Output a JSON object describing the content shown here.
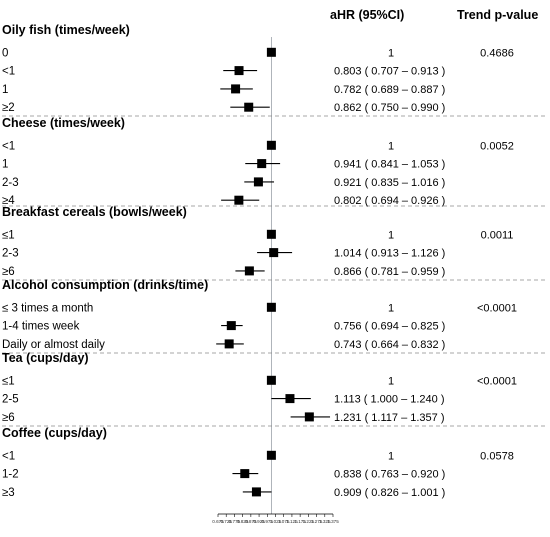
{
  "header": {
    "ahr_label": "aHR (95%CI)",
    "trend_label": "Trend p-value"
  },
  "chart_data": {
    "type": "forest",
    "title": "",
    "xlabel": "",
    "ylabel": "",
    "xlim": [
      0.675,
      1.375
    ],
    "reference_line": 1,
    "x_ticks": [
      "0.675",
      "0.725",
      "0.775",
      "0.825",
      "0.875",
      "0.925",
      "0.975",
      "1.025",
      "1.075",
      "1.125",
      "1.175",
      "1.225",
      "1.275",
      "1.325",
      "1.375"
    ],
    "groups": [
      {
        "name": "Oily fish (times/week)",
        "trend_p": "0.4686",
        "rows": [
          {
            "label": "0",
            "hr": 1,
            "lo": 1,
            "hi": 1,
            "text": "1"
          },
          {
            "label": "<1",
            "hr": 0.803,
            "lo": 0.707,
            "hi": 0.913,
            "text": "0.803  ( 0.707 – 0.913 )"
          },
          {
            "label": "1",
            "hr": 0.782,
            "lo": 0.689,
            "hi": 0.887,
            "text": "0.782  ( 0.689 – 0.887 )"
          },
          {
            "label": "≥2",
            "hr": 0.862,
            "lo": 0.75,
            "hi": 0.99,
            "text": "0.862  ( 0.750 – 0.990 )"
          }
        ]
      },
      {
        "name": "Cheese (times/week)",
        "trend_p": "0.0052",
        "rows": [
          {
            "label": "<1",
            "hr": 1,
            "lo": 1,
            "hi": 1,
            "text": "1"
          },
          {
            "label": "1",
            "hr": 0.941,
            "lo": 0.841,
            "hi": 1.053,
            "text": "0.941  ( 0.841 – 1.053 )"
          },
          {
            "label": "2-3",
            "hr": 0.921,
            "lo": 0.835,
            "hi": 1.016,
            "text": "0.921  ( 0.835 – 1.016 )"
          },
          {
            "label": "≥4",
            "hr": 0.802,
            "lo": 0.694,
            "hi": 0.926,
            "text": "0.802  ( 0.694 – 0.926 )"
          }
        ]
      },
      {
        "name": "Breakfast cereals (bowls/week)",
        "trend_p": "0.0011",
        "rows": [
          {
            "label": "≤1",
            "hr": 1,
            "lo": 1,
            "hi": 1,
            "text": "1"
          },
          {
            "label": "2-3",
            "hr": 1.014,
            "lo": 0.913,
            "hi": 1.126,
            "text": "1.014  ( 0.913 – 1.126 )"
          },
          {
            "label": "≥6",
            "hr": 0.866,
            "lo": 0.781,
            "hi": 0.959,
            "text": "0.866  ( 0.781 – 0.959 )"
          }
        ]
      },
      {
        "name": "Alcohol consumption (drinks/time)",
        "trend_p": "<0.0001",
        "rows": [
          {
            "label": "≤ 3 times a month",
            "hr": 1,
            "lo": 1,
            "hi": 1,
            "text": "1"
          },
          {
            "label": "1-4 times week",
            "hr": 0.756,
            "lo": 0.694,
            "hi": 0.825,
            "text": "0.756  ( 0.694 – 0.825 )"
          },
          {
            "label": "Daily or almost daily",
            "hr": 0.743,
            "lo": 0.664,
            "hi": 0.832,
            "text": "0.743  ( 0.664 – 0.832 )"
          }
        ]
      },
      {
        "name": "Tea (cups/day)",
        "trend_p": "<0.0001",
        "rows": [
          {
            "label": "≤1",
            "hr": 1,
            "lo": 1,
            "hi": 1,
            "text": "1"
          },
          {
            "label": "2-5",
            "hr": 1.113,
            "lo": 1.0,
            "hi": 1.24,
            "text": "1.113  ( 1.000 – 1.240 )"
          },
          {
            "label": "≥6",
            "hr": 1.231,
            "lo": 1.117,
            "hi": 1.357,
            "text": "1.231  ( 1.117 – 1.357 )"
          }
        ]
      },
      {
        "name": "Coffee (cups/day)",
        "trend_p": "0.0578",
        "rows": [
          {
            "label": "<1",
            "hr": 1,
            "lo": 1,
            "hi": 1,
            "text": "1"
          },
          {
            "label": "1-2",
            "hr": 0.838,
            "lo": 0.763,
            "hi": 0.92,
            "text": "0.838  ( 0.763 – 0.920 )"
          },
          {
            "label": "≥3",
            "hr": 0.909,
            "lo": 0.826,
            "hi": 1.001,
            "text": "0.909  ( 0.826 – 1.001 )"
          }
        ]
      }
    ]
  }
}
